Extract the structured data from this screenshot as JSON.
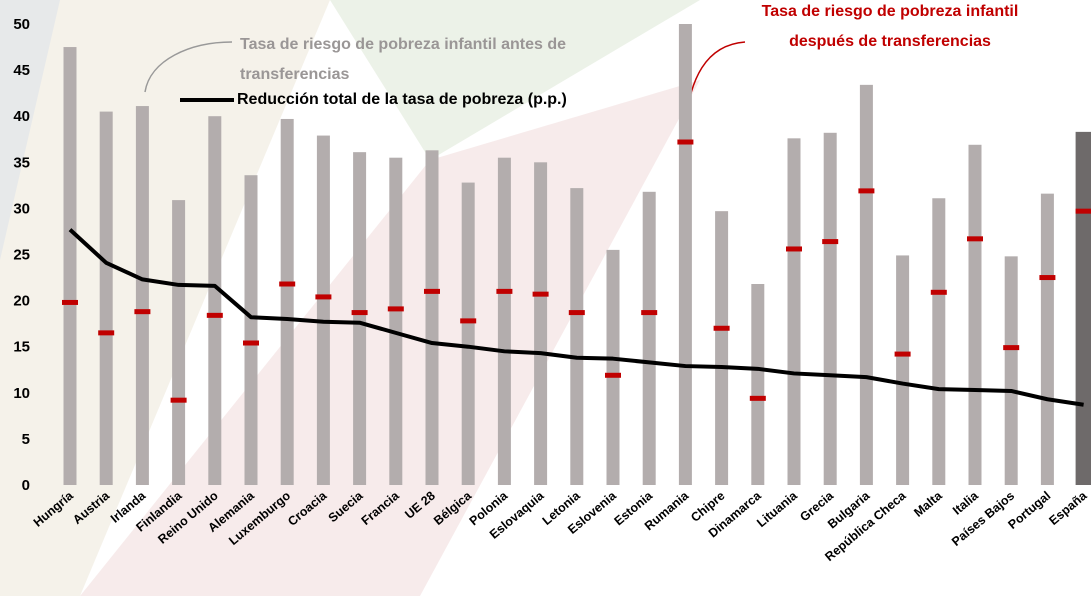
{
  "chart_data": {
    "type": "bar",
    "categories": [
      "Hungría",
      "Austria",
      "Irlanda",
      "Finlandia",
      "Reino Unido",
      "Alemania",
      "Luxemburgo",
      "Croacia",
      "Suecia",
      "Francia",
      "UE 28",
      "Bélgica",
      "Polonia",
      "Eslovaquia",
      "Letonia",
      "Eslovenia",
      "Estonia",
      "Rumania",
      "Chipre",
      "Dinamarca",
      "Lituania",
      "Grecia",
      "Bulgaria",
      "República Checa",
      "Malta",
      "Italia",
      "Países Bajos",
      "Portugal",
      "España"
    ],
    "series": [
      {
        "name": "Tasa de riesgo de pobreza infantil antes de transferencias",
        "type": "bar",
        "color": "#b3adad",
        "highlight_index": 28,
        "highlight_color": "#6e6a6a",
        "values": [
          47.5,
          40.5,
          41.1,
          30.9,
          40.0,
          33.6,
          39.7,
          37.9,
          36.1,
          35.5,
          36.3,
          32.8,
          35.5,
          35.0,
          32.2,
          25.5,
          31.8,
          50,
          29.7,
          21.8,
          37.6,
          38.2,
          43.4,
          24.9,
          31.1,
          36.9,
          24.8,
          31.6,
          38.3
        ]
      },
      {
        "name": "Tasa de riesgo de pobreza infantil después de transferencias",
        "type": "dash",
        "color": "#c00000",
        "values": [
          19.8,
          16.5,
          18.8,
          9.2,
          18.4,
          15.4,
          21.8,
          20.4,
          18.7,
          19.1,
          21.0,
          17.8,
          21.0,
          20.7,
          18.7,
          11.9,
          18.7,
          37.2,
          17.0,
          9.4,
          25.6,
          26.4,
          31.9,
          14.2,
          20.9,
          26.7,
          14.9,
          22.5,
          29.7
        ]
      },
      {
        "name": "Reducción total de la tasa de pobreza (p.p.)",
        "type": "line",
        "color": "#000000",
        "values": [
          27.7,
          24.1,
          22.3,
          21.7,
          21.6,
          18.2,
          18.0,
          17.7,
          17.6,
          16.5,
          15.4,
          15.0,
          14.5,
          14.3,
          13.8,
          13.7,
          13.3,
          12.9,
          12.8,
          12.6,
          12.1,
          11.9,
          11.7,
          11.0,
          10.4,
          10.3,
          10.2,
          9.3,
          8.7
        ]
      }
    ],
    "ylim": [
      0,
      50
    ],
    "yticks": [
      0,
      5,
      10,
      15,
      20,
      25,
      30,
      35,
      40,
      45,
      50
    ],
    "grid": false
  }
}
